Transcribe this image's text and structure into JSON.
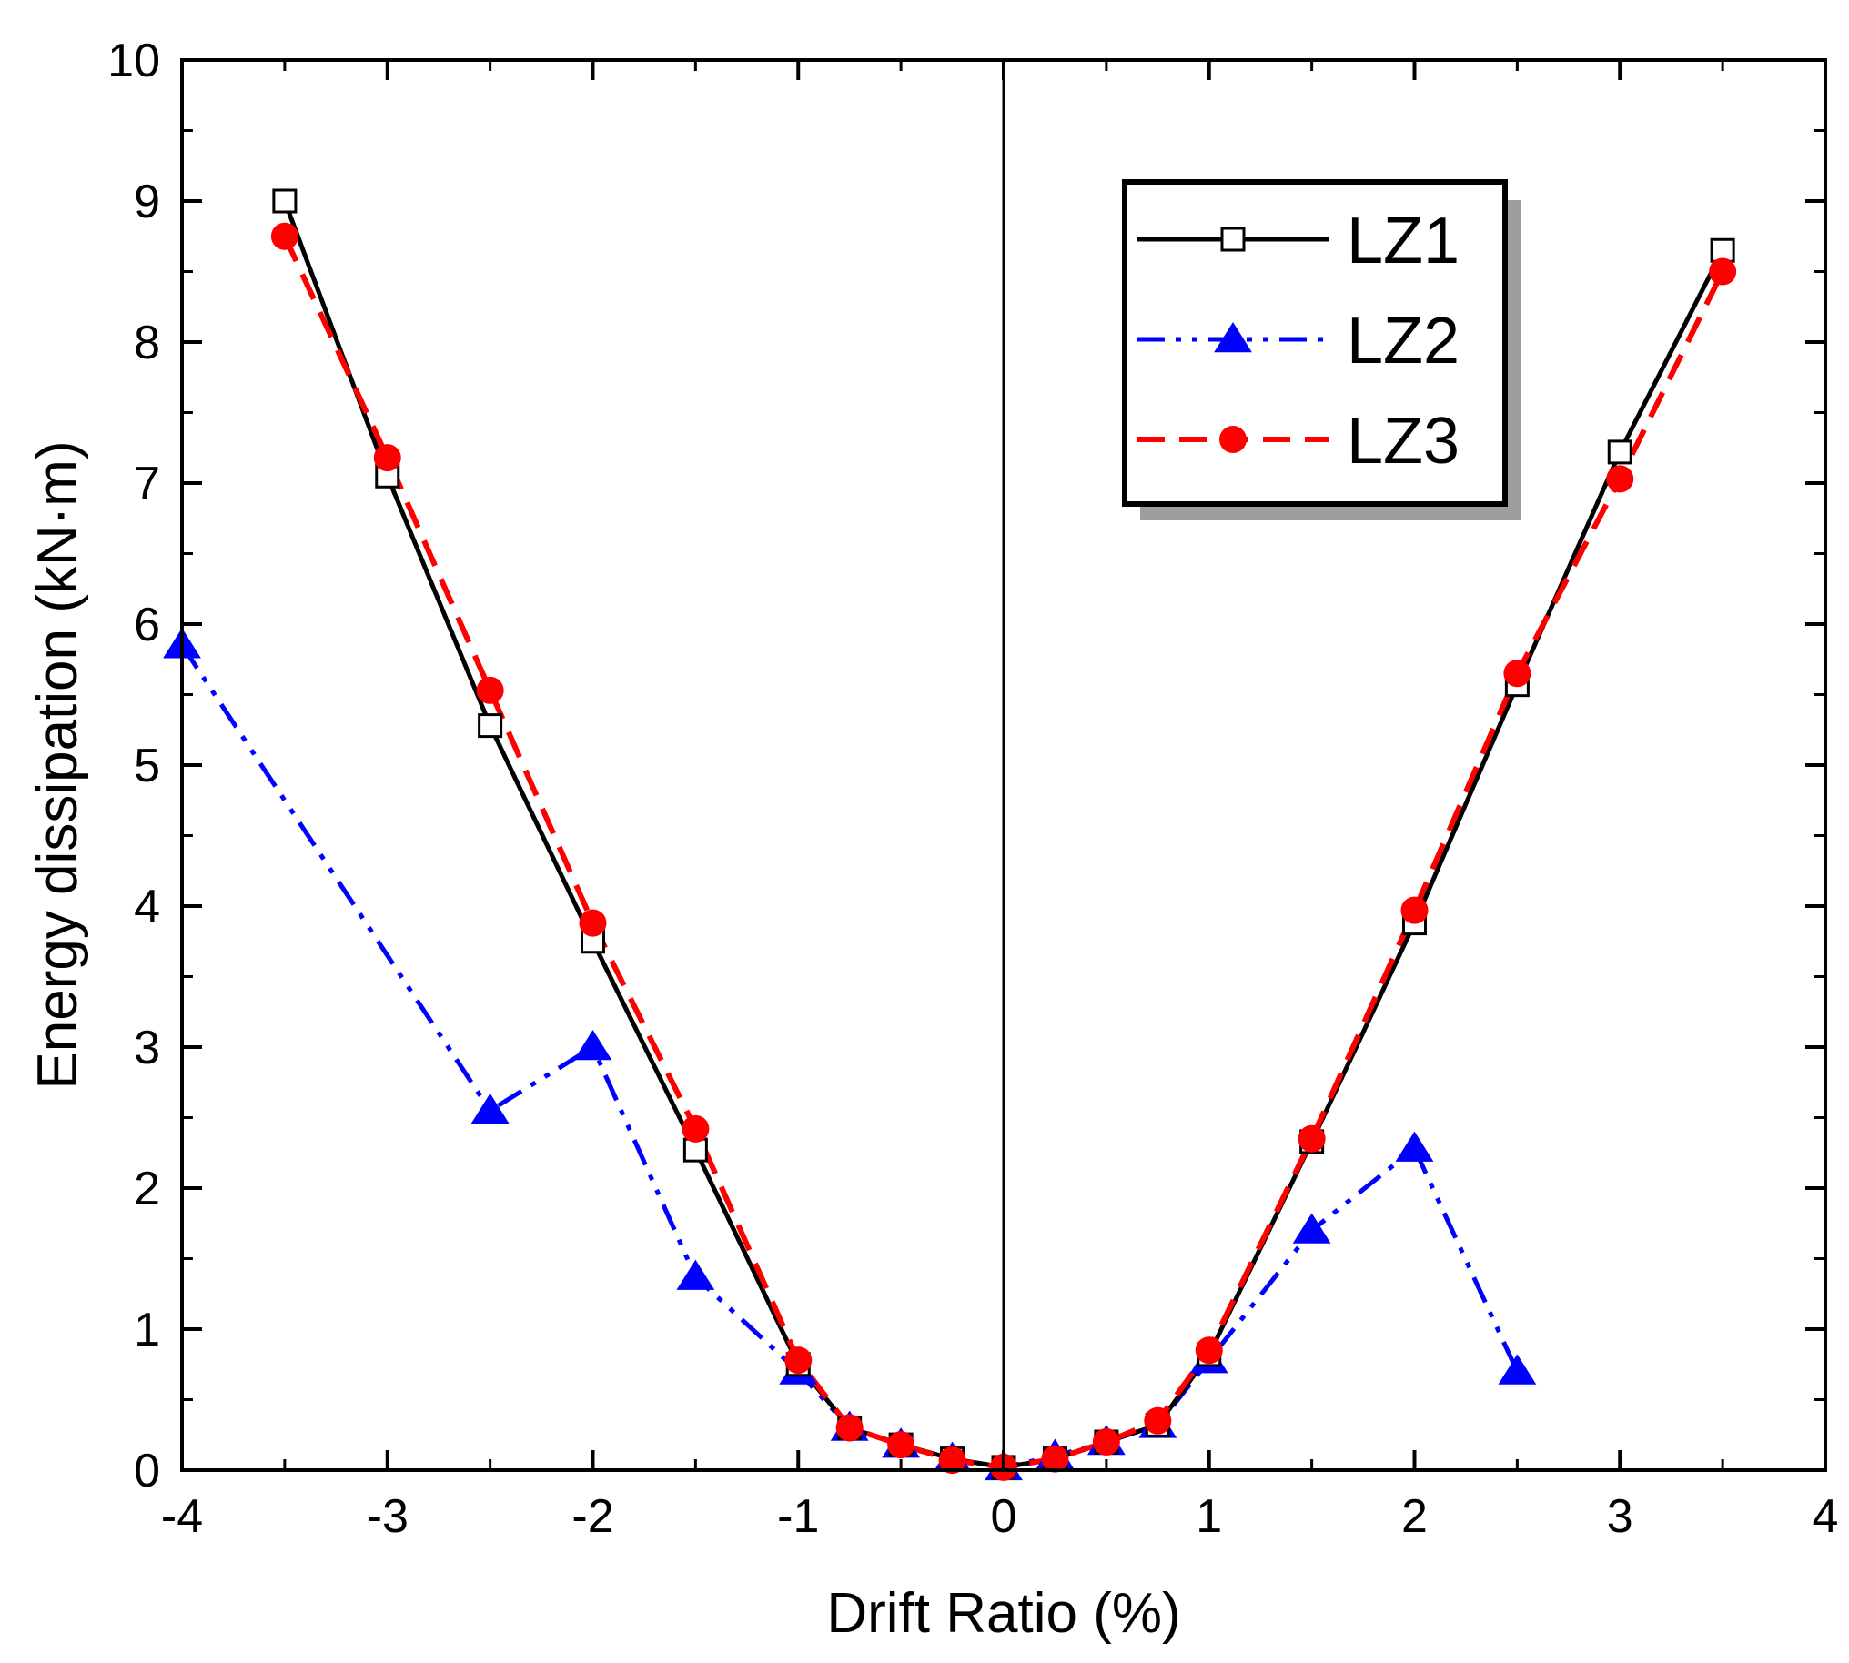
{
  "chart_data": {
    "type": "line",
    "title": "",
    "xlabel": "Drift Ratio (%)",
    "ylabel": "Energy dissipation (kN·m)",
    "xlim": [
      -4,
      4
    ],
    "ylim": [
      0,
      10
    ],
    "xticks": [
      -4,
      -3,
      -2,
      -1,
      0,
      1,
      2,
      3,
      4
    ],
    "xtick_labels": [
      "-4",
      "-3",
      "-2",
      "-1",
      "0",
      "1",
      "2",
      "3",
      "4"
    ],
    "yticks": [
      0,
      1,
      2,
      3,
      4,
      5,
      6,
      7,
      8,
      9,
      10
    ],
    "ytick_labels": [
      "0",
      "1",
      "2",
      "3",
      "4",
      "5",
      "6",
      "7",
      "8",
      "9",
      "10"
    ],
    "legend_position": "top-right",
    "zero_line": true,
    "colors": {
      "LZ1": "#000000",
      "LZ2": "#0000ff",
      "LZ3": "#ff0000"
    },
    "series": [
      {
        "name": "LZ1",
        "line_style": "solid",
        "marker": "open-square",
        "x": [
          -3.5,
          -3,
          -2.5,
          -2,
          -1.5,
          -1,
          -0.75,
          -0.5,
          -0.25,
          0,
          0.25,
          0.5,
          0.75,
          1,
          1.5,
          2,
          2.5,
          3,
          3.5
        ],
        "y": [
          9.0,
          7.05,
          5.28,
          3.75,
          2.27,
          0.75,
          0.3,
          0.18,
          0.08,
          0.02,
          0.08,
          0.2,
          0.32,
          0.82,
          2.33,
          3.88,
          5.57,
          7.22,
          8.65
        ]
      },
      {
        "name": "LZ2",
        "line_style": "dash-dot-dot",
        "marker": "filled-triangle",
        "x": [
          -4,
          -2.5,
          -2,
          -1.5,
          -1,
          -0.75,
          -0.5,
          -0.25,
          0,
          0.25,
          0.5,
          0.75,
          1,
          1.5,
          2,
          2.5
        ],
        "y": [
          5.85,
          2.55,
          3.0,
          1.37,
          0.7,
          0.3,
          0.18,
          0.08,
          0.02,
          0.1,
          0.2,
          0.32,
          0.78,
          1.7,
          2.28,
          0.7
        ]
      },
      {
        "name": "LZ3",
        "line_style": "dashed",
        "marker": "filled-circle",
        "x": [
          -3.5,
          -3,
          -2.5,
          -2,
          -1.5,
          -1,
          -0.75,
          -0.5,
          -0.25,
          0,
          0.25,
          0.5,
          0.75,
          1,
          1.5,
          2,
          2.5,
          3,
          3.5
        ],
        "y": [
          8.75,
          7.18,
          5.53,
          3.88,
          2.42,
          0.78,
          0.3,
          0.18,
          0.07,
          0.02,
          0.08,
          0.2,
          0.35,
          0.85,
          2.35,
          3.97,
          5.65,
          7.03,
          8.5
        ]
      }
    ]
  }
}
